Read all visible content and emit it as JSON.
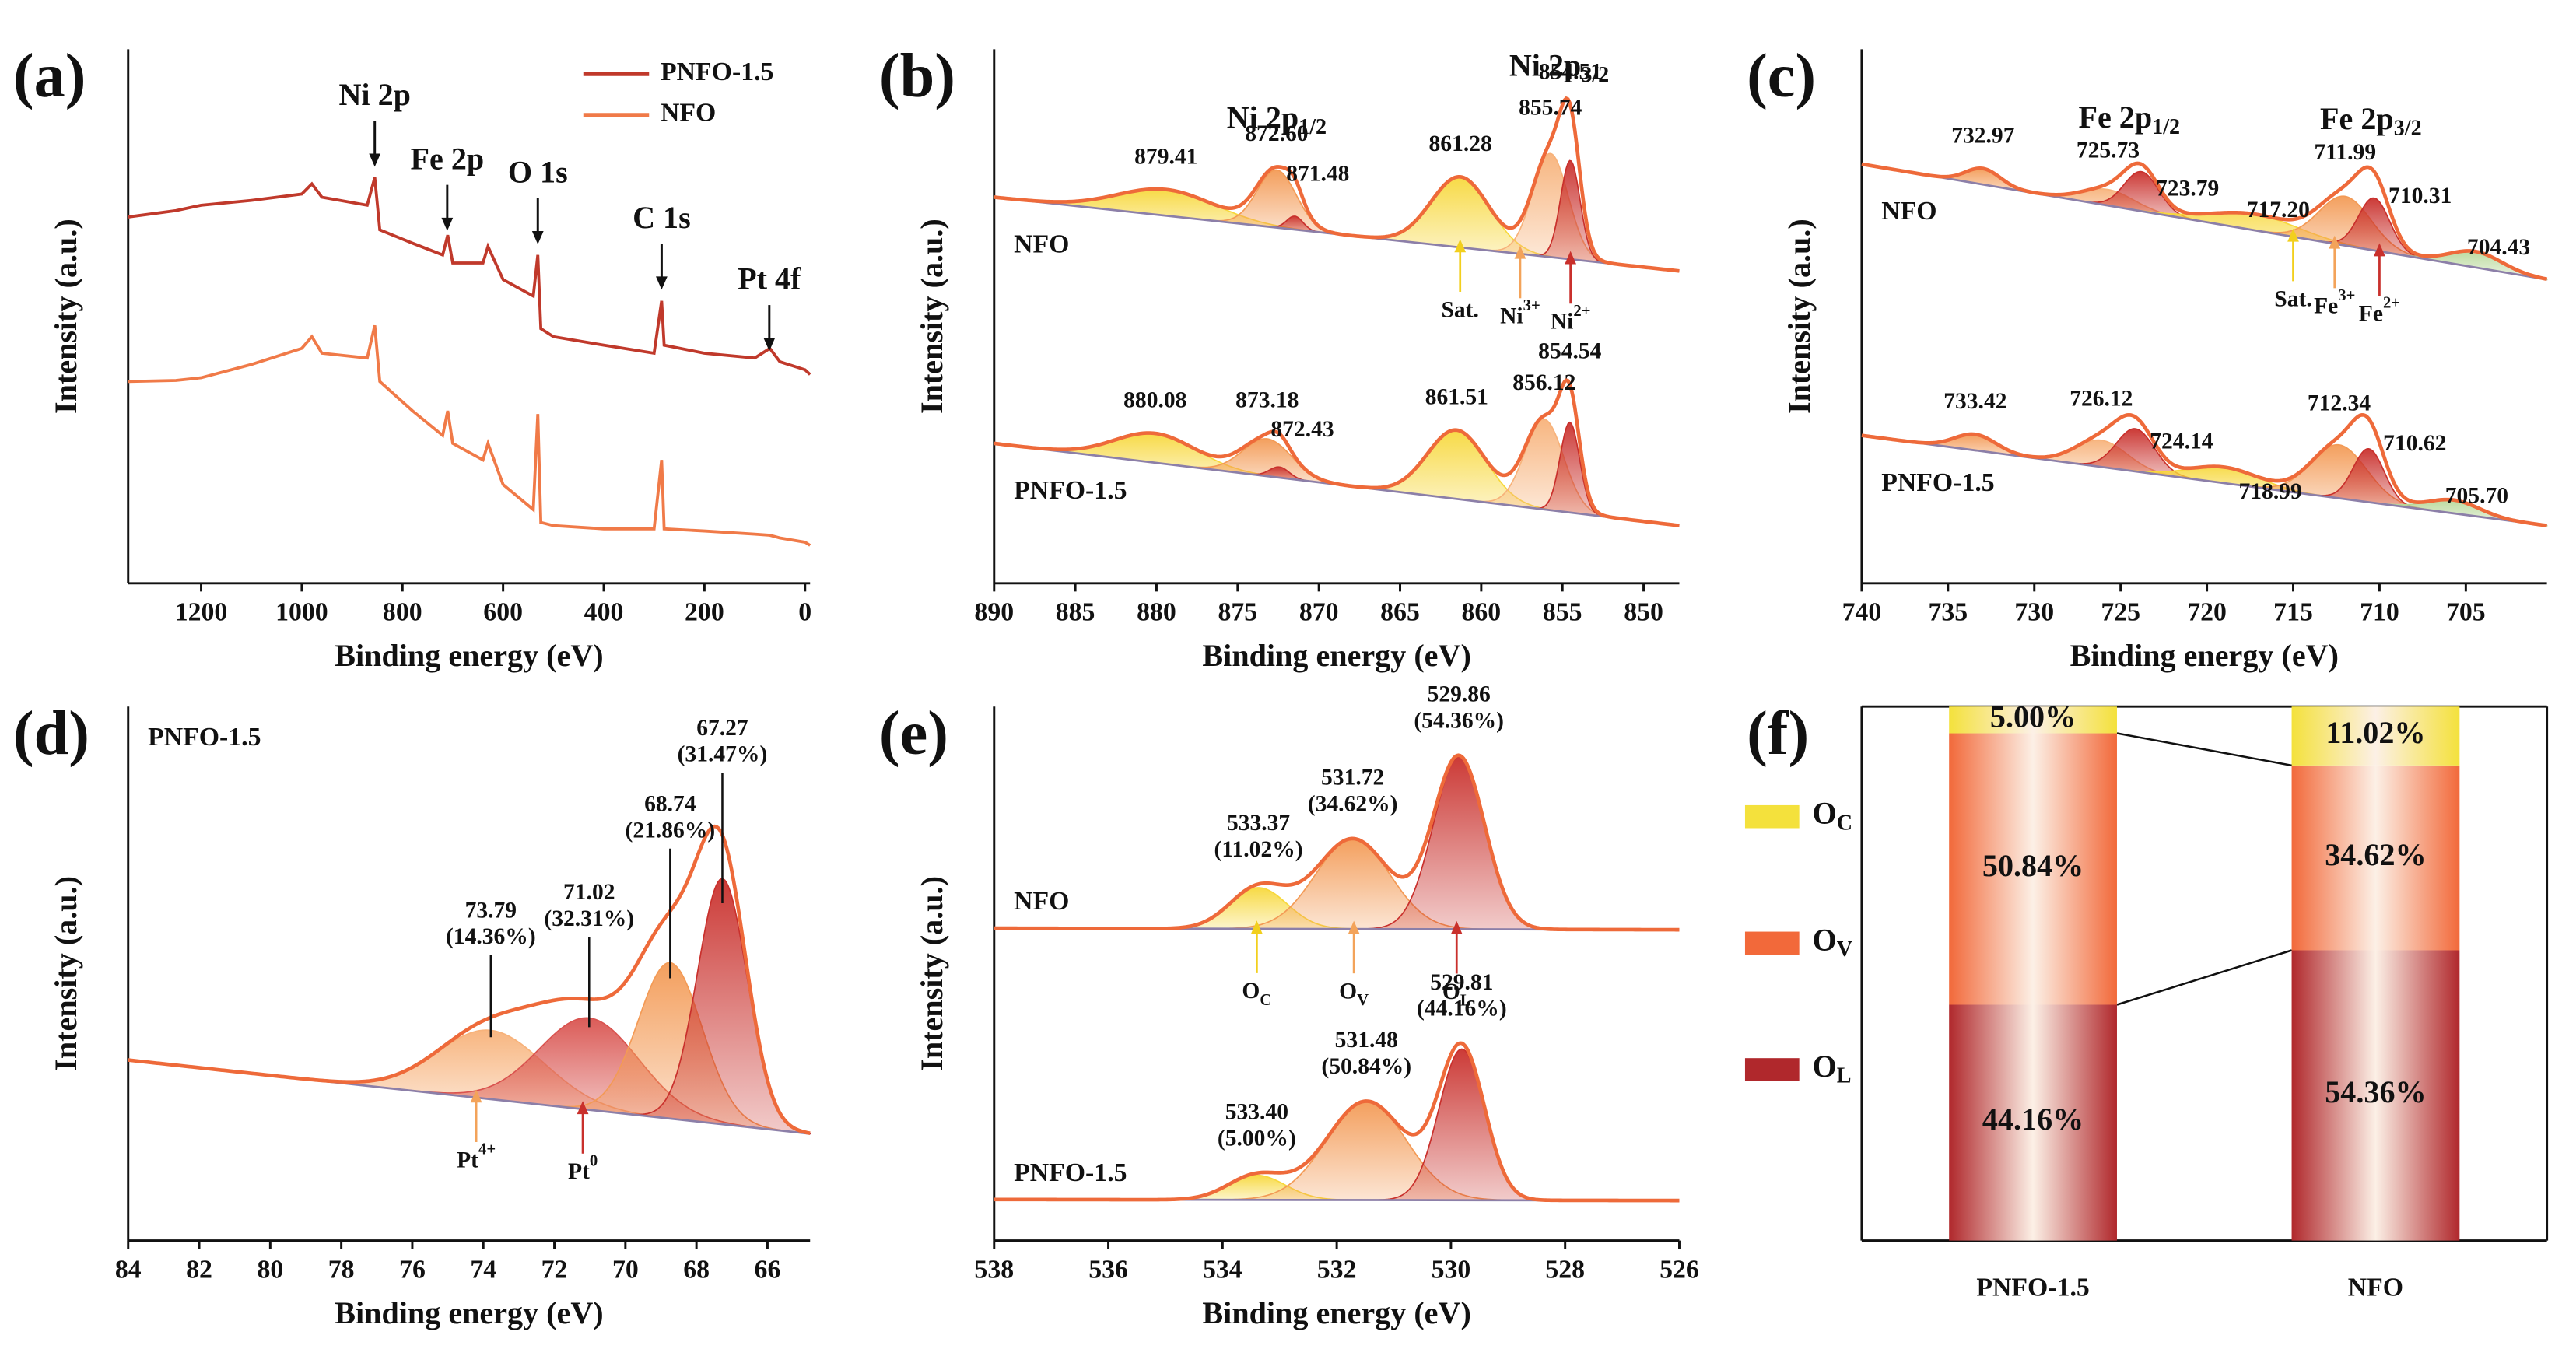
{
  "chart_data": [
    {
      "type": "line",
      "panel": "(a)",
      "xlabel": "Binding energy (eV)",
      "ylabel": "Intensity (a.u.)",
      "xlim": [
        1345,
        -10
      ],
      "xticks": [
        1200,
        1000,
        800,
        600,
        400,
        200,
        0
      ],
      "ylim": [
        0,
        100
      ],
      "legend": "upper right",
      "x": [
        1345,
        1250,
        1200,
        1100,
        1000,
        980,
        960,
        870,
        855,
        845,
        780,
        720,
        710,
        700,
        640,
        630,
        600,
        540,
        531,
        525,
        500,
        400,
        300,
        285,
        280,
        200,
        100,
        70,
        50,
        0,
        -10
      ],
      "series": [
        {
          "name": "PNFO-1.5",
          "color": "#c0392b",
          "values": [
            68.6,
            69.8,
            70.8,
            71.7,
            72.9,
            74.8,
            72.3,
            70.8,
            76,
            66.2,
            63.7,
            61.5,
            65.2,
            60,
            60,
            63.1,
            56.9,
            53.8,
            61.5,
            47.7,
            46.2,
            44.6,
            43.1,
            52.9,
            44.6,
            43.1,
            42.2,
            44,
            41.5,
            40,
            39.1
          ]
        },
        {
          "name": "NFO",
          "color": "#f07a48",
          "values": [
            37.8,
            38,
            38.5,
            41,
            44,
            46.2,
            43.1,
            42.2,
            48.3,
            37.8,
            32.3,
            27.7,
            32.3,
            26.2,
            23.1,
            26.2,
            18.5,
            13.8,
            31.7,
            11.4,
            10.8,
            10.2,
            10.2,
            23.1,
            10.2,
            9.8,
            9.2,
            9,
            8.5,
            7.7,
            7.1
          ]
        }
      ],
      "annotations": [
        {
          "text": "Ni 2p",
          "x": 855,
          "y": 78
        },
        {
          "text": "Fe 2p",
          "x": 711,
          "y": 66
        },
        {
          "text": "O 1s",
          "x": 531,
          "y": 63.5
        },
        {
          "text": "C 1s",
          "x": 285,
          "y": 55
        },
        {
          "text": "Pt 4f",
          "x": 71,
          "y": 43.5
        }
      ]
    },
    {
      "type": "peaks",
      "panel": "(b)",
      "xlabel": "Binding energy (eV)",
      "ylabel": "Intensity (a.u.)",
      "xlim": [
        890,
        847.8
      ],
      "xticks": [
        890,
        885,
        880,
        875,
        870,
        865,
        860,
        855,
        850
      ],
      "ylim": [
        0,
        100
      ],
      "envelope_color": "#ee6a3a",
      "baseline_color": "#8c7fa8",
      "headers": [
        {
          "text": "Ni 2p",
          "sub": "1/2",
          "x": 872.6,
          "color": "#6fa8d6"
        },
        {
          "text": "Ni 2p",
          "sub": "3/2",
          "x": 855.2,
          "color": "#6fa8d6"
        }
      ],
      "markers": [
        {
          "text": "Sat.",
          "x": 861.3,
          "color": "#f2cf1d"
        },
        {
          "text": "Ni",
          "sup": "3+",
          "x": 857.6,
          "color": "#f3a35a"
        },
        {
          "text": "Ni",
          "sup": "2+",
          "x": 854.5,
          "color": "#c9302c"
        }
      ],
      "spectra": [
        {
          "label": "NFO",
          "baseline": [
            72.3,
            58.5
          ],
          "peaks": [
            {
              "center": 879.41,
              "height": 4.9,
              "width": 3,
              "color": "#f7d83c"
            },
            {
              "center": 872.6,
              "label": "872.60",
              "height": 10.8,
              "width": 1.2,
              "color": "#f39a55"
            },
            {
              "center": 871.48,
              "height": 2.5,
              "width": 0.5,
              "color": "#c9302c"
            },
            {
              "center": 861.28,
              "height": 13.2,
              "width": 1.8,
              "color": "#f7d83c"
            },
            {
              "center": 855.74,
              "height": 19.4,
              "width": 1.1,
              "color": "#f7b27a"
            },
            {
              "center": 854.51,
              "height": 18.5,
              "width": 0.6,
              "color": "#c9302c"
            }
          ]
        },
        {
          "label": "PNFO-1.5",
          "baseline": [
            26.2,
            10.8
          ],
          "peaks": [
            {
              "center": 880.08,
              "height": 5.5,
              "width": 2.5,
              "color": "#f7d83c"
            },
            {
              "center": 873.18,
              "height": 7,
              "width": 1.5,
              "color": "#f39a55"
            },
            {
              "center": 872.43,
              "height": 2,
              "width": 0.6,
              "color": "#c9302c"
            },
            {
              "center": 861.51,
              "height": 12.9,
              "width": 1.8,
              "color": "#f7d83c"
            },
            {
              "center": 856.12,
              "height": 16.9,
              "width": 1.2,
              "color": "#f7b27a"
            },
            {
              "center": 854.54,
              "height": 16.9,
              "width": 0.6,
              "color": "#c9302c"
            }
          ]
        }
      ]
    },
    {
      "type": "peaks",
      "panel": "(c)",
      "xlabel": "Binding energy (eV)",
      "ylabel": "Intensity (a.u.)",
      "xlim": [
        740,
        700.3
      ],
      "xticks": [
        740,
        735,
        730,
        725,
        720,
        715,
        710,
        705
      ],
      "ylim": [
        0,
        100
      ],
      "envelope_color": "#ee6a3a",
      "baseline_color": "#8c7fa8",
      "headers": [
        {
          "text": "Fe 2p",
          "sub": "1/2",
          "x": 724.5,
          "color": "#b585c9"
        },
        {
          "text": "Fe 2p",
          "sub": "3/2",
          "x": 710.5,
          "color": "#b585c9"
        }
      ],
      "markers": [
        {
          "text": "Sat.",
          "x": 715,
          "color": "#f2cf1d"
        },
        {
          "text": "Fe",
          "sup": "3+",
          "x": 712.6,
          "color": "#f3a35a"
        },
        {
          "text": "Fe",
          "sup": "2+",
          "x": 710,
          "color": "#c9302c"
        }
      ],
      "spectra": [
        {
          "label": "NFO",
          "baseline": [
            78.5,
            56.9
          ],
          "peaks": [
            {
              "center": 732.97,
              "height": 3,
              "width": 1,
              "color": "#f39a55"
            },
            {
              "center": 725.73,
              "height": 3,
              "width": 1.5,
              "color": "#f7b27a"
            },
            {
              "center": 723.79,
              "height": 7.4,
              "width": 1,
              "color": "#c9302c"
            },
            {
              "center": 717.2,
              "label": "717.20",
              "height": 3,
              "width": 2.5,
              "color": "#f7d83c"
            },
            {
              "center": 711.99,
              "height": 9.2,
              "width": 1.5,
              "color": "#f39a55"
            },
            {
              "center": 710.31,
              "height": 9.8,
              "width": 0.9,
              "color": "#c9302c"
            },
            {
              "center": 704.43,
              "height": 3,
              "width": 1.5,
              "color": "#b8d89a"
            }
          ]
        },
        {
          "label": "PNFO-1.5",
          "baseline": [
            27.7,
            10.8
          ],
          "peaks": [
            {
              "center": 733.42,
              "height": 3,
              "width": 1.2,
              "color": "#f39a55"
            },
            {
              "center": 726.12,
              "height": 5,
              "width": 1.5,
              "color": "#f7b27a"
            },
            {
              "center": 724.14,
              "height": 8,
              "width": 1.1,
              "color": "#c9302c"
            },
            {
              "center": 718.99,
              "height": 3,
              "width": 2,
              "color": "#f7d83c"
            },
            {
              "center": 712.34,
              "height": 10,
              "width": 1.6,
              "color": "#f39a55"
            },
            {
              "center": 710.62,
              "height": 10,
              "width": 0.9,
              "color": "#c9302c"
            },
            {
              "center": 705.7,
              "label": "705.70",
              "height": 2.5,
              "width": 1.5,
              "color": "#b8d89a"
            }
          ]
        }
      ]
    },
    {
      "type": "peaks",
      "panel": "(d)",
      "xlabel": "Binding energy (eV)",
      "ylabel": "Intensity (a.u.)",
      "xlim": [
        84,
        64.8
      ],
      "xticks": [
        84,
        82,
        80,
        78,
        76,
        74,
        72,
        70,
        68,
        66
      ],
      "ylim": [
        0,
        100
      ],
      "leaders": true,
      "envelope_color": "#ee6a3a",
      "baseline_color": "#8c7fa8",
      "markers": [
        {
          "text": "Pt",
          "sup": "4+",
          "x": 74.2,
          "color": "#f3a35a"
        },
        {
          "text": "Pt",
          "sup": "0",
          "x": 71.2,
          "color": "#c9302c"
        }
      ],
      "spectra": [
        {
          "label": "PNFO-1.5",
          "baseline": [
            33.8,
            20
          ],
          "peaks": [
            {
              "center": 73.79,
              "height": 12.9,
              "width": 1.5,
              "color": "#f7b27a",
              "area": 14.36,
              "area_label": "(14.36%)"
            },
            {
              "center": 71.02,
              "height": 17.2,
              "width": 1.4,
              "color": "#d9534f",
              "area": 32.31,
              "area_label": "(32.31%)"
            },
            {
              "center": 68.74,
              "height": 29.2,
              "width": 0.9,
              "color": "#f39a55",
              "area": 21.86,
              "area_label": "(21.86%)"
            },
            {
              "center": 67.27,
              "height": 46,
              "width": 0.7,
              "color": "#c9302c",
              "area": 31.47,
              "area_label": "(31.47%)"
            }
          ]
        }
      ]
    },
    {
      "type": "peaks",
      "panel": "(e)",
      "xlabel": "Binding energy (eV)",
      "ylabel": "Intensity (a.u.)",
      "xlim": [
        538,
        526
      ],
      "xticks": [
        538,
        536,
        534,
        532,
        530,
        528,
        526
      ],
      "ylim": [
        0,
        100
      ],
      "envelope_color": "#ee6a3a",
      "baseline_color": "#8c7fa8",
      "markers": [
        {
          "text": "O",
          "sub": "C",
          "x": 533.4,
          "color": "#f2cf1d"
        },
        {
          "text": "O",
          "sub": "V",
          "x": 531.7,
          "color": "#f3a35a"
        },
        {
          "text": "O",
          "sub": "L",
          "x": 529.9,
          "color": "#c9302c"
        }
      ],
      "spectra": [
        {
          "label": "NFO",
          "baseline": [
            58.5,
            58.2
          ],
          "peaks": [
            {
              "center": 533.37,
              "height": 7.7,
              "width": 0.5,
              "color": "#f7d83c",
              "area": 11.02,
              "area_label": "(11.02%)"
            },
            {
              "center": 531.72,
              "height": 16.9,
              "width": 0.65,
              "color": "#f39a55",
              "area": 34.62,
              "area_label": "(34.62%)"
            },
            {
              "center": 529.86,
              "height": 32.3,
              "width": 0.45,
              "color": "#c9302c",
              "area": 54.36,
              "area_label": "(54.36%)"
            }
          ]
        },
        {
          "label": "PNFO-1.5",
          "baseline": [
            7.7,
            7.5
          ],
          "peaks": [
            {
              "center": 533.4,
              "label": "533.40",
              "height": 4.6,
              "width": 0.5,
              "color": "#f7d83c",
              "area": 5,
              "area_label": "(5.00%)"
            },
            {
              "center": 531.48,
              "height": 18.5,
              "width": 0.7,
              "color": "#f39a55",
              "area": 50.84,
              "area_label": "(50.84%)"
            },
            {
              "center": 529.81,
              "height": 28.3,
              "width": 0.4,
              "color": "#c9302c",
              "area": 44.16,
              "area_label": "(44.16%)"
            }
          ]
        }
      ]
    },
    {
      "type": "bar",
      "panel": "(f)",
      "stacked": true,
      "legend": "left",
      "ylim": [
        0,
        100
      ],
      "categories": [
        "PNFO-1.5",
        "NFO"
      ],
      "series": [
        {
          "name": "O",
          "sub": "L",
          "color": "#b0282c",
          "values": [
            44.16,
            54.36
          ],
          "value_labels": [
            "44.16%",
            "54.36%"
          ]
        },
        {
          "name": "O",
          "sub": "V",
          "color": "#f2693a",
          "values": [
            50.84,
            34.62
          ],
          "value_labels": [
            "50.84%",
            "34.62%"
          ]
        },
        {
          "name": "O",
          "sub": "C",
          "color": "#f4e13c",
          "values": [
            5.0,
            11.02
          ],
          "value_labels": [
            "5.00%",
            "11.02%"
          ]
        }
      ]
    }
  ]
}
